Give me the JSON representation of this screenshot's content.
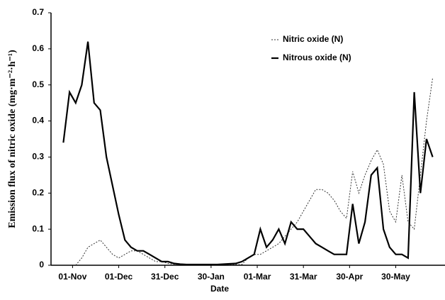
{
  "chart_data": {
    "type": "line",
    "x_label": "Date",
    "y_label": "Emission flux of nitric oxide (mg·m⁻²·h⁻¹)",
    "x": [
      -6,
      -2,
      2,
      6,
      10,
      14,
      18,
      22,
      26,
      30,
      34,
      38,
      42,
      46,
      50,
      54,
      58,
      62,
      66,
      70,
      74,
      78,
      82,
      86,
      90,
      94,
      98,
      102,
      106,
      110,
      114,
      118,
      122,
      126,
      130,
      134,
      138,
      142,
      146,
      150,
      154,
      158,
      162,
      166,
      170,
      174,
      178,
      182,
      186,
      190,
      194,
      198,
      202,
      206,
      210,
      214,
      218,
      222,
      226,
      230,
      234
    ],
    "series": [
      {
        "name": "Nitric oxide (N)",
        "color": "#333333",
        "dash": true,
        "values": [
          null,
          null,
          0,
          0.02,
          0.05,
          0.06,
          0.07,
          0.05,
          0.03,
          0.02,
          0.03,
          0.04,
          0.04,
          0.03,
          0.02,
          0.01,
          0.01,
          0.005,
          0.003,
          0.002,
          0.002,
          0.002,
          0.002,
          0.002,
          0.002,
          0.002,
          0.002,
          0.002,
          0.002,
          0.002,
          0.02,
          0.03,
          0.03,
          0.04,
          0.05,
          0.06,
          0.08,
          0.1,
          0.12,
          0.15,
          0.18,
          0.21,
          0.21,
          0.2,
          0.18,
          0.15,
          0.13,
          0.26,
          0.2,
          0.25,
          0.29,
          0.32,
          0.28,
          0.15,
          0.12,
          0.25,
          0.12,
          0.1,
          0.25,
          0.4,
          0.52
        ]
      },
      {
        "name": "Nitrous oxide (N)",
        "color": "#000000",
        "dash": false,
        "values": [
          0.34,
          0.48,
          0.45,
          0.5,
          0.62,
          0.45,
          0.43,
          0.3,
          0.22,
          0.14,
          0.07,
          0.05,
          0.04,
          0.04,
          0.03,
          0.02,
          0.01,
          0.01,
          0.005,
          0.003,
          0.002,
          0.002,
          0.002,
          0.002,
          0.002,
          0.002,
          0.003,
          0.004,
          0.005,
          0.01,
          0.02,
          0.03,
          0.1,
          0.05,
          0.07,
          0.1,
          0.06,
          0.12,
          0.1,
          0.1,
          0.08,
          0.06,
          0.05,
          0.04,
          0.03,
          0.03,
          0.03,
          0.17,
          0.06,
          0.12,
          0.25,
          0.27,
          0.1,
          0.05,
          0.03,
          0.03,
          0.02,
          0.48,
          0.2,
          0.35,
          0.3
        ]
      }
    ],
    "xlim": [
      -14,
      242
    ],
    "xticks": [
      {
        "value": 0,
        "label": "01-Nov"
      },
      {
        "value": 30,
        "label": "01-Dec"
      },
      {
        "value": 60,
        "label": "31-Dec"
      },
      {
        "value": 90,
        "label": "30-Jan"
      },
      {
        "value": 120,
        "label": "01-Mar"
      },
      {
        "value": 150,
        "label": "31-Mar"
      },
      {
        "value": 180,
        "label": "30-Apr"
      },
      {
        "value": 210,
        "label": "30-May"
      }
    ],
    "ylim": [
      0,
      0.7
    ],
    "yticks": [
      0,
      0.1,
      0.2,
      0.3,
      0.4,
      0.5,
      0.6,
      0.7
    ],
    "legend": "top-right"
  }
}
